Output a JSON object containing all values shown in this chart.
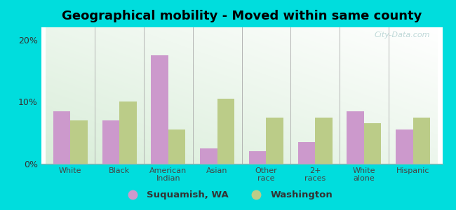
{
  "title": "Geographical mobility - Moved within same county",
  "categories": [
    "White",
    "Black",
    "American\nIndian",
    "Asian",
    "Other\nrace",
    "2+\nraces",
    "White\nalone",
    "Hispanic"
  ],
  "suquamish_values": [
    8.5,
    7.0,
    17.5,
    2.5,
    2.0,
    3.5,
    8.5,
    5.5
  ],
  "washington_values": [
    7.0,
    10.0,
    5.5,
    10.5,
    7.5,
    7.5,
    6.5,
    7.5
  ],
  "suquamish_color": "#cc99cc",
  "washington_color": "#bbcc88",
  "ylim": [
    0,
    22
  ],
  "yticks": [
    0,
    10,
    20
  ],
  "ytick_labels": [
    "0%",
    "10%",
    "20%"
  ],
  "legend_labels": [
    "Suquamish, WA",
    "Washington"
  ],
  "background_outer": "#00dddd",
  "bar_width": 0.35,
  "title_fontsize": 13,
  "watermark": "City-Data.com"
}
